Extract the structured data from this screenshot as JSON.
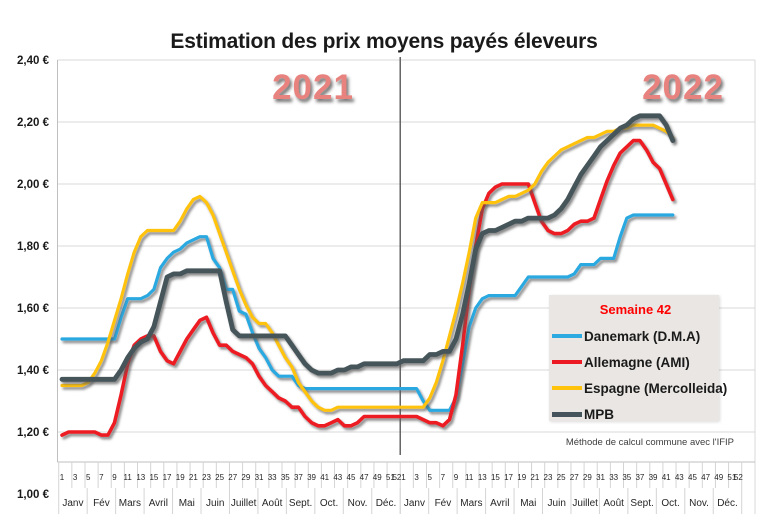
{
  "title": "Estimation des prix moyens payés éleveurs",
  "year_labels": [
    "2021",
    "2022"
  ],
  "footnote": "Méthode de calcul commune avec l'IFIP",
  "legend": {
    "title": "Semaine 42",
    "title_color": "#ff0000",
    "background": "#e9e6e3"
  },
  "colors": {
    "grid": "#d9d9d9",
    "axis_line": "#bfbfbf",
    "tick": "#d4d4d4",
    "divider": "#595959",
    "year_label": "#e8827e",
    "shadow": "#595959"
  },
  "chart_data": {
    "type": "line",
    "title": "Estimation des prix moyens payés éleveurs",
    "grid": "horizontal",
    "legend_position": "inside-right",
    "y_axis": {
      "min": 1.0,
      "max": 2.4,
      "step": 0.2,
      "tick_labels": [
        "2,40 €",
        "2,20 €",
        "2,00 €",
        "1,80 €",
        "1,60 €",
        "1,40 €",
        "1,20 €",
        "1,00 €"
      ]
    },
    "x_axis": {
      "years": [
        "2021",
        "2022"
      ],
      "weeks_per_year": [
        52,
        42
      ],
      "week_tick_labels": [
        "1",
        "3",
        "5",
        "7",
        "9",
        "11",
        "13",
        "15",
        "17",
        "19",
        "21",
        "23",
        "25",
        "27",
        "29",
        "31",
        "33",
        "35",
        "37",
        "39",
        "41",
        "43",
        "45",
        "47",
        "49",
        "51",
        "52"
      ],
      "months": [
        "Janv",
        "Fév",
        "Mars",
        "Avril",
        "Mai",
        "Juin",
        "Juillet",
        "Août",
        "Sept.",
        "Oct.",
        "Nov.",
        "Déc."
      ]
    },
    "series": [
      {
        "name": "Danemark (D.M.A)",
        "color": "#2ba9e1",
        "values": [
          1.5,
          1.5,
          1.5,
          1.5,
          1.5,
          1.5,
          1.5,
          1.5,
          1.5,
          1.57,
          1.63,
          1.63,
          1.63,
          1.64,
          1.66,
          1.73,
          1.76,
          1.78,
          1.79,
          1.81,
          1.82,
          1.83,
          1.83,
          1.76,
          1.73,
          1.66,
          1.66,
          1.59,
          1.58,
          1.52,
          1.47,
          1.44,
          1.4,
          1.38,
          1.38,
          1.38,
          1.35,
          1.34,
          1.34,
          1.34,
          1.34,
          1.34,
          1.34,
          1.34,
          1.34,
          1.34,
          1.34,
          1.34,
          1.34,
          1.34,
          1.34,
          1.34,
          1.34,
          1.34,
          1.34,
          1.3,
          1.27,
          1.27,
          1.27,
          1.27,
          1.31,
          1.42,
          1.54,
          1.6,
          1.63,
          1.64,
          1.64,
          1.64,
          1.64,
          1.64,
          1.67,
          1.7,
          1.7,
          1.7,
          1.7,
          1.7,
          1.7,
          1.7,
          1.71,
          1.74,
          1.74,
          1.74,
          1.76,
          1.76,
          1.76,
          1.83,
          1.89,
          1.9,
          1.9,
          1.9,
          1.9,
          1.9,
          1.9,
          1.9
        ]
      },
      {
        "name": "Allemagne (AMI)",
        "color": "#ec1b23",
        "values": [
          1.19,
          1.2,
          1.2,
          1.2,
          1.2,
          1.2,
          1.19,
          1.19,
          1.23,
          1.32,
          1.42,
          1.48,
          1.5,
          1.51,
          1.51,
          1.46,
          1.43,
          1.42,
          1.46,
          1.5,
          1.53,
          1.56,
          1.57,
          1.52,
          1.48,
          1.48,
          1.46,
          1.45,
          1.44,
          1.42,
          1.38,
          1.35,
          1.33,
          1.31,
          1.3,
          1.28,
          1.28,
          1.25,
          1.23,
          1.22,
          1.22,
          1.23,
          1.24,
          1.22,
          1.22,
          1.23,
          1.25,
          1.25,
          1.25,
          1.25,
          1.25,
          1.25,
          1.25,
          1.25,
          1.25,
          1.24,
          1.23,
          1.23,
          1.22,
          1.24,
          1.32,
          1.48,
          1.66,
          1.8,
          1.92,
          1.97,
          1.99,
          2.0,
          2.0,
          2.0,
          2.0,
          2.0,
          1.94,
          1.88,
          1.85,
          1.84,
          1.84,
          1.85,
          1.87,
          1.88,
          1.88,
          1.89,
          1.95,
          2.01,
          2.06,
          2.1,
          2.12,
          2.14,
          2.14,
          2.11,
          2.07,
          2.05,
          2.0,
          1.95
        ]
      },
      {
        "name": "Espagne (Mercolleida)",
        "color": "#ffc20d",
        "values": [
          1.35,
          1.35,
          1.35,
          1.35,
          1.36,
          1.39,
          1.43,
          1.49,
          1.56,
          1.63,
          1.71,
          1.78,
          1.83,
          1.85,
          1.85,
          1.85,
          1.85,
          1.85,
          1.88,
          1.92,
          1.95,
          1.96,
          1.94,
          1.9,
          1.84,
          1.78,
          1.72,
          1.66,
          1.61,
          1.57,
          1.55,
          1.55,
          1.52,
          1.48,
          1.44,
          1.41,
          1.36,
          1.33,
          1.3,
          1.28,
          1.27,
          1.27,
          1.28,
          1.28,
          1.28,
          1.28,
          1.28,
          1.28,
          1.28,
          1.28,
          1.28,
          1.28,
          1.28,
          1.28,
          1.28,
          1.28,
          1.31,
          1.36,
          1.43,
          1.51,
          1.59,
          1.68,
          1.78,
          1.89,
          1.94,
          1.94,
          1.94,
          1.95,
          1.96,
          1.96,
          1.97,
          1.98,
          2.0,
          2.04,
          2.07,
          2.09,
          2.11,
          2.12,
          2.13,
          2.14,
          2.15,
          2.15,
          2.16,
          2.17,
          2.17,
          2.18,
          2.18,
          2.19,
          2.19,
          2.19,
          2.19,
          2.18,
          2.17,
          2.15
        ]
      },
      {
        "name": "MPB",
        "color": "#44545a",
        "values": [
          1.37,
          1.37,
          1.37,
          1.37,
          1.37,
          1.37,
          1.37,
          1.37,
          1.37,
          1.4,
          1.44,
          1.47,
          1.49,
          1.5,
          1.54,
          1.62,
          1.7,
          1.71,
          1.71,
          1.72,
          1.72,
          1.72,
          1.72,
          1.72,
          1.72,
          1.62,
          1.53,
          1.51,
          1.51,
          1.51,
          1.51,
          1.51,
          1.51,
          1.51,
          1.51,
          1.48,
          1.45,
          1.42,
          1.4,
          1.39,
          1.39,
          1.39,
          1.4,
          1.4,
          1.41,
          1.41,
          1.42,
          1.42,
          1.42,
          1.42,
          1.42,
          1.42,
          1.43,
          1.43,
          1.43,
          1.43,
          1.45,
          1.45,
          1.46,
          1.46,
          1.5,
          1.58,
          1.68,
          1.79,
          1.84,
          1.85,
          1.85,
          1.86,
          1.87,
          1.88,
          1.88,
          1.89,
          1.89,
          1.89,
          1.89,
          1.9,
          1.92,
          1.95,
          1.99,
          2.03,
          2.06,
          2.09,
          2.12,
          2.14,
          2.16,
          2.18,
          2.19,
          2.21,
          2.22,
          2.22,
          2.22,
          2.22,
          2.19,
          2.14
        ]
      }
    ]
  }
}
